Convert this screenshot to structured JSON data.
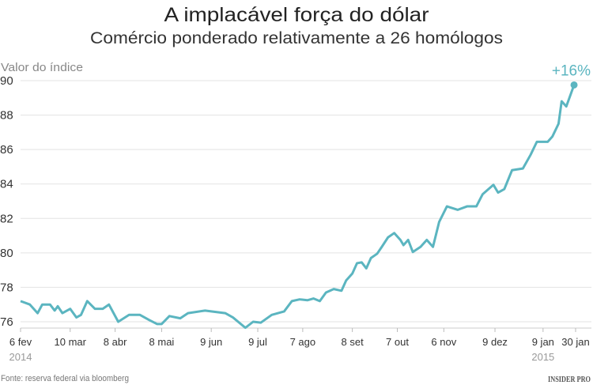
{
  "chart_data": {
    "type": "line",
    "title": "A implacável força do dólar",
    "subtitle": "Comércio ponderado relativamente a 26 homólogos",
    "ylabel": "Valor do índice",
    "xlabel": "",
    "ylim": [
      76,
      90
    ],
    "yticks": [
      "76",
      "78",
      "80",
      "82",
      "84",
      "86",
      "88",
      "90"
    ],
    "xlim": [
      "2014-02-06",
      "2015-01-30"
    ],
    "xticks": [
      {
        "date": "2014-02-06",
        "label": "6 fev"
      },
      {
        "date": "2014-03-10",
        "label": "10 mar"
      },
      {
        "date": "2014-04-08",
        "label": "8 abr"
      },
      {
        "date": "2014-05-08",
        "label": "8 mai"
      },
      {
        "date": "2014-06-09",
        "label": "9 jun"
      },
      {
        "date": "2014-07-09",
        "label": "9 jul"
      },
      {
        "date": "2014-08-07",
        "label": "7 ago"
      },
      {
        "date": "2014-09-08",
        "label": "8 set"
      },
      {
        "date": "2014-10-07",
        "label": "7 out"
      },
      {
        "date": "2014-11-06",
        "label": "6 nov"
      },
      {
        "date": "2014-12-09",
        "label": "9 dez"
      },
      {
        "date": "2015-01-09",
        "label": "9 jan"
      },
      {
        "date": "2015-01-30",
        "label": "30 jan"
      }
    ],
    "year_labels": [
      {
        "date": "2014-02-06",
        "label": "2014"
      },
      {
        "date": "2015-01-09",
        "label": "2015"
      }
    ],
    "grid": true,
    "line_color": "#5bb5c0",
    "annotation": "+16%",
    "points": [
      [
        "2014-02-06",
        77.2
      ],
      [
        "2014-02-12",
        77.0
      ],
      [
        "2014-02-17",
        76.5
      ],
      [
        "2014-02-20",
        77.0
      ],
      [
        "2014-02-25",
        77.0
      ],
      [
        "2014-02-28",
        76.65
      ],
      [
        "2014-03-02",
        76.9
      ],
      [
        "2014-03-05",
        76.5
      ],
      [
        "2014-03-10",
        76.75
      ],
      [
        "2014-03-14",
        76.25
      ],
      [
        "2014-03-17",
        76.4
      ],
      [
        "2014-03-21",
        77.2
      ],
      [
        "2014-03-26",
        76.75
      ],
      [
        "2014-03-31",
        76.75
      ],
      [
        "2014-04-04",
        77.0
      ],
      [
        "2014-04-10",
        76.0
      ],
      [
        "2014-04-17",
        76.4
      ],
      [
        "2014-04-24",
        76.4
      ],
      [
        "2014-04-30",
        76.1
      ],
      [
        "2014-05-05",
        75.87
      ],
      [
        "2014-05-08",
        75.87
      ],
      [
        "2014-05-13",
        76.33
      ],
      [
        "2014-05-20",
        76.2
      ],
      [
        "2014-05-25",
        76.5
      ],
      [
        "2014-06-05",
        76.65
      ],
      [
        "2014-06-18",
        76.5
      ],
      [
        "2014-06-23",
        76.25
      ],
      [
        "2014-07-01",
        75.65
      ],
      [
        "2014-07-06",
        76.0
      ],
      [
        "2014-07-11",
        75.95
      ],
      [
        "2014-07-18",
        76.4
      ],
      [
        "2014-07-26",
        76.6
      ],
      [
        "2014-07-31",
        77.2
      ],
      [
        "2014-08-05",
        77.3
      ],
      [
        "2014-08-10",
        77.25
      ],
      [
        "2014-08-14",
        77.35
      ],
      [
        "2014-08-18",
        77.2
      ],
      [
        "2014-08-22",
        77.7
      ],
      [
        "2014-08-27",
        77.9
      ],
      [
        "2014-09-01",
        77.8
      ],
      [
        "2014-09-04",
        78.4
      ],
      [
        "2014-09-08",
        78.8
      ],
      [
        "2014-09-11",
        79.4
      ],
      [
        "2014-09-14",
        79.45
      ],
      [
        "2014-09-17",
        79.1
      ],
      [
        "2014-09-20",
        79.7
      ],
      [
        "2014-09-24",
        79.95
      ],
      [
        "2014-09-27",
        80.35
      ],
      [
        "2014-10-01",
        80.9
      ],
      [
        "2014-10-05",
        81.15
      ],
      [
        "2014-10-09",
        80.75
      ],
      [
        "2014-10-11",
        80.45
      ],
      [
        "2014-10-14",
        80.75
      ],
      [
        "2014-10-17",
        80.05
      ],
      [
        "2014-10-22",
        80.35
      ],
      [
        "2014-10-26",
        80.75
      ],
      [
        "2014-10-30",
        80.35
      ],
      [
        "2014-11-03",
        81.8
      ],
      [
        "2014-11-08",
        82.7
      ],
      [
        "2014-11-15",
        82.5
      ],
      [
        "2014-11-21",
        82.7
      ],
      [
        "2014-11-27",
        82.7
      ],
      [
        "2014-12-01",
        83.4
      ],
      [
        "2014-12-08",
        83.95
      ],
      [
        "2014-12-11",
        83.5
      ],
      [
        "2014-12-15",
        83.7
      ],
      [
        "2014-12-20",
        84.8
      ],
      [
        "2014-12-27",
        84.9
      ],
      [
        "2015-01-01",
        85.7
      ],
      [
        "2015-01-05",
        86.45
      ],
      [
        "2015-01-12",
        86.45
      ],
      [
        "2015-01-15",
        86.75
      ],
      [
        "2015-01-19",
        87.5
      ],
      [
        "2015-01-21",
        88.8
      ],
      [
        "2015-01-24",
        88.5
      ],
      [
        "2015-01-29",
        89.75
      ]
    ]
  },
  "footer": {
    "source": "Fonte: reserva federal via bloomberg",
    "logo": "INSIDER PRO"
  }
}
